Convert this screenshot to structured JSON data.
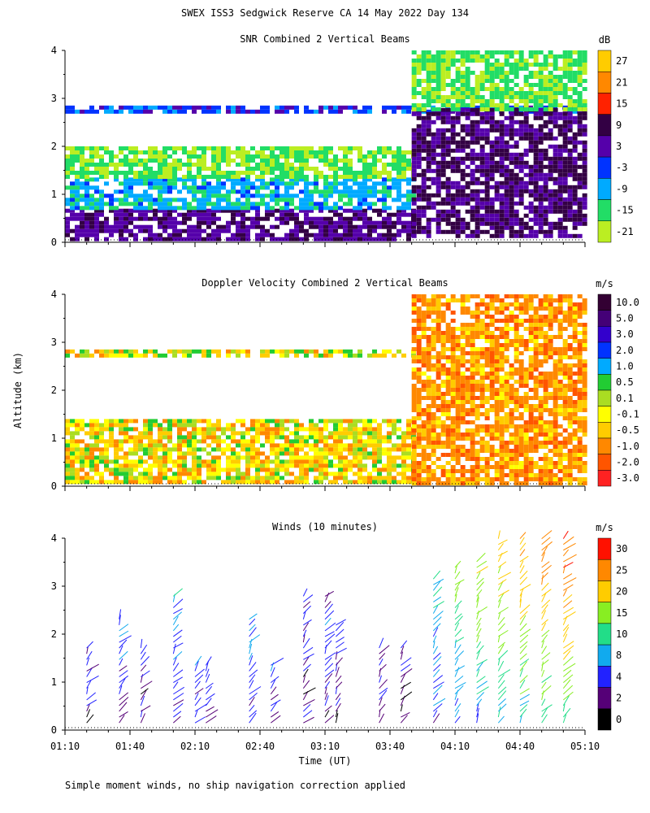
{
  "figure": {
    "title": "SWEX ISS3 Sedgwick Reserve CA  14 May 2022 Day 134",
    "footnote": "Simple moment winds, no ship navigation correction applied",
    "shared_ylabel": "Altitude (km)",
    "shared_xlabel": "Time (UT)"
  },
  "chart_data": [
    {
      "type": "heatmap",
      "title": "SNR Combined 2 Vertical Beams",
      "ylabel": "Altitude (km)",
      "ylim": [
        0,
        4
      ],
      "yticks": [
        0,
        1,
        2,
        3,
        4
      ],
      "xlim": [
        "01:10",
        "05:10"
      ],
      "colorbar": {
        "unit": "dB",
        "labels": [
          "27",
          "21",
          "15",
          "9",
          "3",
          "-3",
          "-9",
          "-15",
          "-21"
        ],
        "colors": [
          "#ffcc00",
          "#ff8800",
          "#ff2200",
          "#330044",
          "#5500aa",
          "#0033ff",
          "#00aaff",
          "#22dd66",
          "#bbee22"
        ]
      },
      "description_layers": [
        {
          "from": "01:10",
          "to": "03:50",
          "alt_range": [
            0.1,
            0.7
          ],
          "value_db": 5
        },
        {
          "from": "01:10",
          "to": "03:50",
          "alt_range": [
            0.7,
            1.35
          ],
          "value_db": -10
        },
        {
          "from": "01:10",
          "to": "03:50",
          "alt_range": [
            1.35,
            2.0
          ],
          "value_db": -18
        },
        {
          "from": "01:10",
          "to": "05:10",
          "alt_range": [
            2.7,
            2.85
          ],
          "value_db": -3
        },
        {
          "from": "03:50",
          "to": "05:10",
          "alt_range": [
            0.1,
            2.8
          ],
          "value_db": 7
        },
        {
          "from": "03:50",
          "to": "05:10",
          "alt_range": [
            2.8,
            4.0
          ],
          "value_db": -17
        }
      ]
    },
    {
      "type": "heatmap",
      "title": "Doppler Velocity Combined 2 Vertical Beams",
      "ylabel": "Altitude (km)",
      "ylim": [
        0,
        4
      ],
      "yticks": [
        0,
        1,
        2,
        3,
        4
      ],
      "xlim": [
        "01:10",
        "05:10"
      ],
      "colorbar": {
        "unit": "m/s",
        "labels": [
          "10.0",
          "5.0",
          "3.0",
          "2.0",
          "1.0",
          "0.5",
          "0.1",
          "-0.1",
          "-0.5",
          "-1.0",
          "-2.0",
          "-3.0"
        ],
        "colors": [
          "#330033",
          "#440077",
          "#3300cc",
          "#0033ff",
          "#00aaff",
          "#22cc33",
          "#aadd22",
          "#ffff00",
          "#ffcc00",
          "#ff8800",
          "#ff5500",
          "#ff2222"
        ]
      },
      "description_layers": [
        {
          "from": "01:10",
          "to": "03:50",
          "alt_range": [
            0.1,
            1.4
          ],
          "value_ms": -0.3
        },
        {
          "from": "01:10",
          "to": "03:50",
          "alt_range": [
            2.7,
            2.85
          ],
          "value_ms": -0.1
        },
        {
          "from": "03:50",
          "to": "05:10",
          "alt_range": [
            0.1,
            4.0
          ],
          "value_ms": -1.0
        }
      ]
    },
    {
      "type": "scatter",
      "title": "Winds (10 minutes)",
      "ylabel": "Altitude (km)",
      "xlabel": "Time (UT)",
      "ylim": [
        0,
        4
      ],
      "yticks": [
        0,
        1,
        2,
        3,
        4
      ],
      "xlim": [
        "01:10",
        "05:10"
      ],
      "xticks": [
        "01:10",
        "01:40",
        "02:10",
        "02:40",
        "03:10",
        "03:40",
        "04:10",
        "04:40",
        "05:10"
      ],
      "colorbar": {
        "unit": "m/s",
        "labels": [
          "30",
          "25",
          "20",
          "15",
          "10",
          "8",
          "4",
          "2",
          "0"
        ],
        "colors": [
          "#ff1100",
          "#ff8800",
          "#ffcc00",
          "#88ee22",
          "#22dd88",
          "#11aaee",
          "#2222ff",
          "#550077",
          "#000000"
        ]
      },
      "profile_times": [
        "01:20",
        "01:35",
        "01:45",
        "02:00",
        "02:10",
        "02:15",
        "02:35",
        "02:45",
        "03:00",
        "03:10",
        "03:15",
        "03:35",
        "03:45",
        "04:00",
        "04:10",
        "04:20",
        "04:30",
        "04:40",
        "04:50",
        "05:00"
      ],
      "profile_tops_km": [
        1.8,
        2.4,
        1.8,
        2.8,
        1.4,
        1.4,
        2.4,
        1.4,
        2.8,
        2.8,
        2.2,
        1.8,
        1.8,
        3.2,
        3.4,
        3.6,
        4.0,
        4.0,
        4.0,
        4.0
      ],
      "profile_speeds_ms": [
        4,
        5,
        4,
        6,
        4,
        4,
        6,
        5,
        4,
        4,
        4,
        3,
        3,
        8,
        12,
        15,
        18,
        20,
        22,
        24
      ]
    }
  ]
}
